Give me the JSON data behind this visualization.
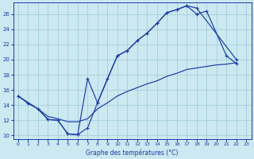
{
  "xlabel": "Graphe des températures (°C)",
  "xlim": [
    -0.5,
    23.5
  ],
  "ylim": [
    9.5,
    27.5
  ],
  "yticks": [
    10,
    12,
    14,
    16,
    18,
    20,
    22,
    24,
    26
  ],
  "xticks": [
    0,
    1,
    2,
    3,
    4,
    5,
    6,
    7,
    8,
    9,
    10,
    11,
    12,
    13,
    14,
    15,
    16,
    17,
    18,
    19,
    20,
    21,
    22,
    23
  ],
  "bg_color": "#cce8f0",
  "grid_color": "#99ccd8",
  "line_color": "#1a3aab",
  "line1_x": [
    0,
    1,
    2,
    3,
    4,
    5,
    6,
    7,
    8,
    9,
    10,
    11,
    12,
    13,
    14,
    15,
    16,
    17,
    18,
    22
  ],
  "line1_y": [
    15.2,
    14.2,
    13.5,
    12.1,
    12.0,
    10.2,
    10.1,
    11.0,
    14.3,
    17.5,
    20.5,
    21.2,
    22.5,
    23.5,
    24.8,
    26.2,
    26.6,
    27.1,
    26.8,
    20.0
  ],
  "line2_x": [
    0,
    2,
    3,
    4,
    5,
    6,
    7,
    8,
    10,
    11,
    12,
    13,
    14,
    15,
    16,
    17,
    18,
    19,
    21,
    22
  ],
  "line2_y": [
    15.2,
    13.5,
    12.1,
    12.0,
    10.2,
    10.1,
    17.5,
    14.3,
    20.5,
    21.2,
    22.5,
    23.5,
    24.8,
    26.2,
    26.6,
    27.1,
    26.0,
    26.4,
    20.5,
    19.5
  ],
  "line3_x": [
    2,
    3,
    4,
    5,
    6,
    7,
    8,
    9,
    10,
    11,
    12,
    13,
    14,
    15,
    16,
    17,
    18,
    19,
    20,
    21,
    22
  ],
  "line3_y": [
    13.5,
    12.5,
    12.2,
    11.8,
    11.8,
    12.2,
    13.5,
    14.3,
    15.2,
    15.8,
    16.3,
    16.8,
    17.2,
    17.8,
    18.2,
    18.7,
    18.9,
    19.1,
    19.3,
    19.4,
    19.6
  ]
}
